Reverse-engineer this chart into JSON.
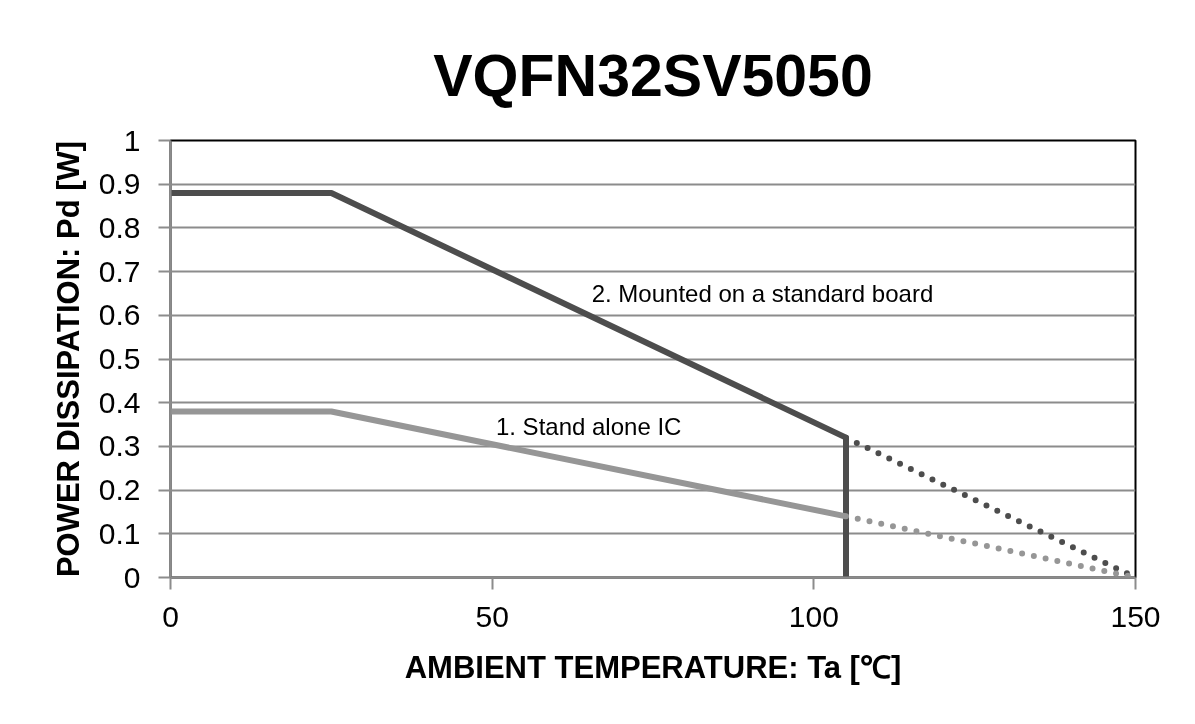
{
  "chart_data": {
    "type": "line",
    "title": "VQFN32SV5050",
    "xlabel": "AMBIENT TEMPERATURE: Ta [℃]",
    "ylabel": "POWER DISSIPATION: Pd [W]",
    "xlim": [
      0,
      150
    ],
    "ylim": [
      0,
      1
    ],
    "xticks": [
      0,
      50,
      100,
      150
    ],
    "yticks": [
      0,
      0.1,
      0.2,
      0.3,
      0.4,
      0.5,
      0.6,
      0.7,
      0.8,
      0.9,
      1
    ],
    "grid": "y",
    "series": [
      {
        "name": "2. Mounted on a standard board",
        "color": "#4d4d4d",
        "x": [
          0,
          25,
          105,
          105
        ],
        "values": [
          0.88,
          0.88,
          0.32,
          0
        ],
        "line_style": "solid"
      },
      {
        "color": "#4d4d4d",
        "x": [
          105,
          150
        ],
        "values": [
          0.32,
          0
        ],
        "line_style": "dotted"
      },
      {
        "name": "1. Stand alone IC",
        "color": "#969696",
        "x": [
          0,
          25,
          105
        ],
        "values": [
          0.38,
          0.38,
          0.14
        ],
        "line_style": "solid"
      },
      {
        "color": "#969696",
        "x": [
          105,
          150
        ],
        "values": [
          0.14,
          0
        ],
        "line_style": "dotted"
      }
    ]
  }
}
